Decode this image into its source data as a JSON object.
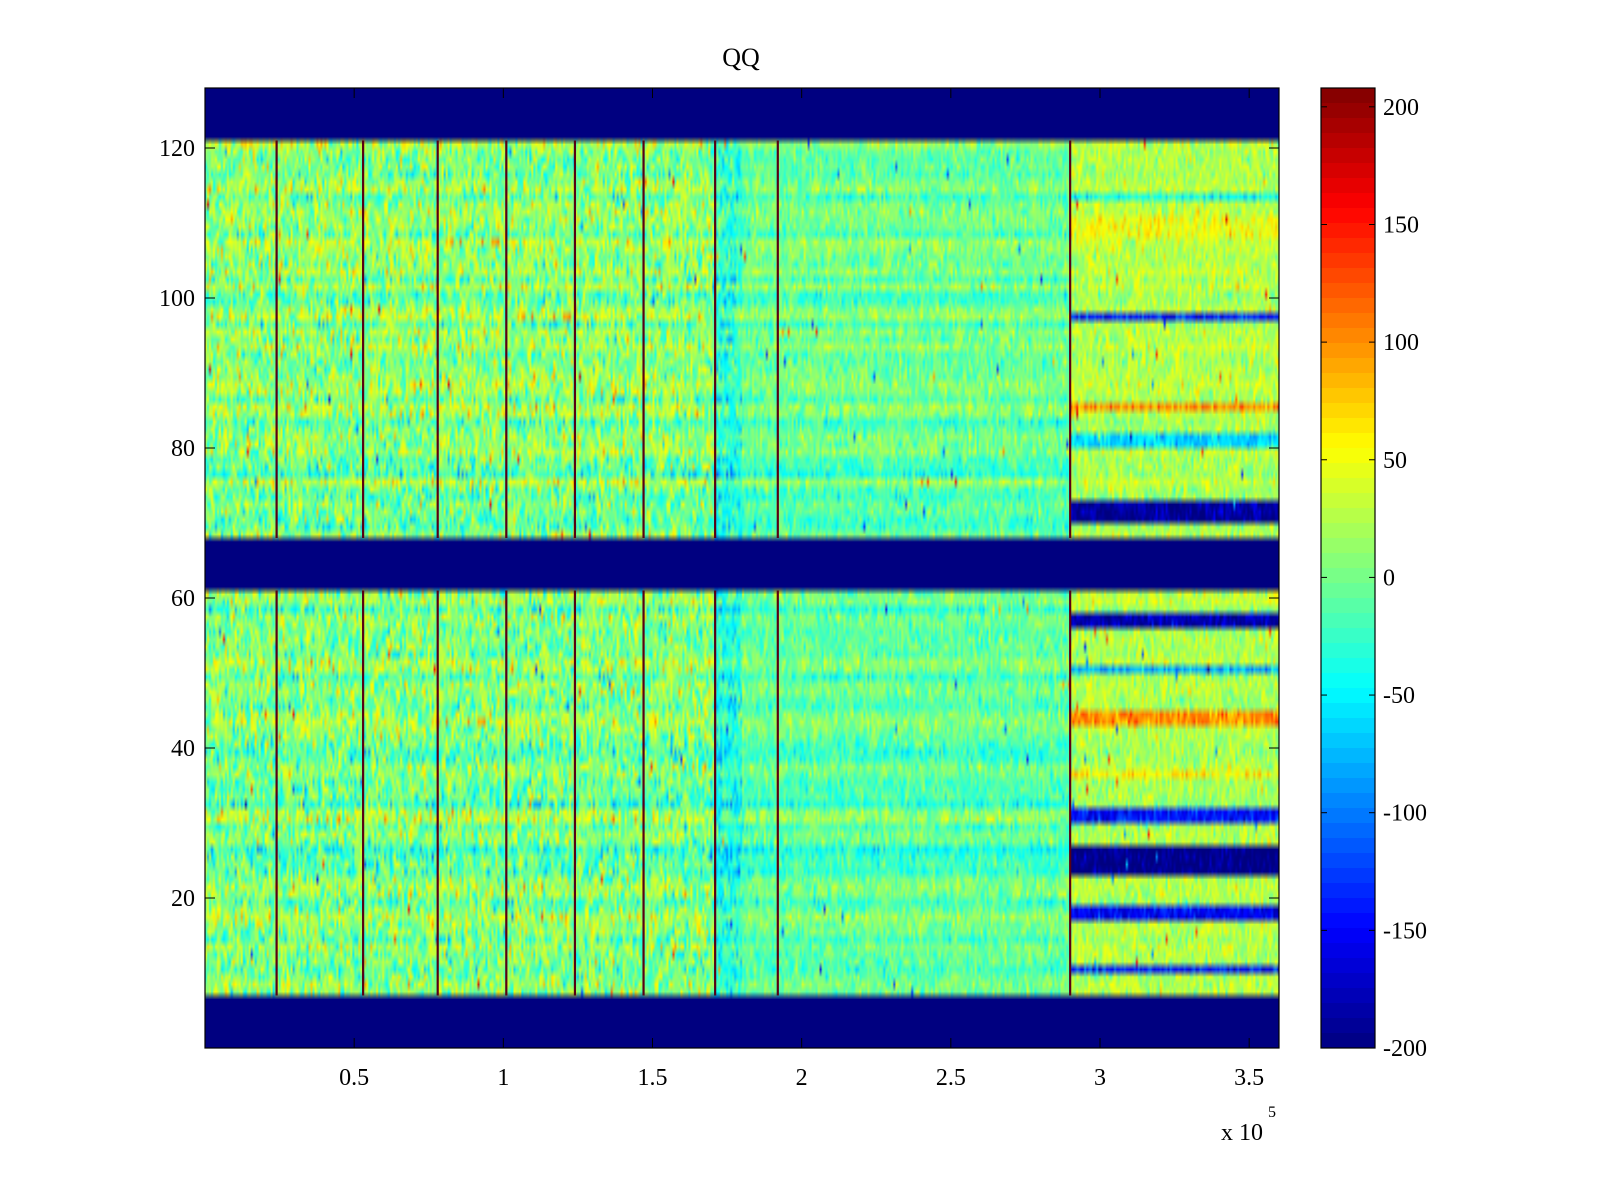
{
  "chart_data": {
    "type": "heatmap",
    "title": "QQ",
    "xlabel": "",
    "ylabel": "",
    "x_multiplier": "x 10",
    "x_multiplier_exponent": "5",
    "xlim": [
      0,
      360000
    ],
    "ylim": [
      0,
      128
    ],
    "x_ticks": [
      {
        "value": 50000,
        "label": "0.5"
      },
      {
        "value": 100000,
        "label": "1"
      },
      {
        "value": 150000,
        "label": "1.5"
      },
      {
        "value": 200000,
        "label": "2"
      },
      {
        "value": 250000,
        "label": "2.5"
      },
      {
        "value": 300000,
        "label": "3"
      },
      {
        "value": 350000,
        "label": "3.5"
      }
    ],
    "y_ticks": [
      {
        "value": 20,
        "label": "20"
      },
      {
        "value": 40,
        "label": "40"
      },
      {
        "value": 60,
        "label": "60"
      },
      {
        "value": 80,
        "label": "80"
      },
      {
        "value": 100,
        "label": "100"
      },
      {
        "value": 120,
        "label": "120"
      }
    ],
    "colorbar": {
      "colormap": "jet",
      "clim": [
        -200,
        208
      ],
      "ticks": [
        {
          "value": 200,
          "label": "200"
        },
        {
          "value": 150,
          "label": "150"
        },
        {
          "value": 100,
          "label": "100"
        },
        {
          "value": 50,
          "label": "50"
        },
        {
          "value": 0,
          "label": "0"
        },
        {
          "value": -50,
          "label": "-50"
        },
        {
          "value": -100,
          "label": "-100"
        },
        {
          "value": -150,
          "label": "-150"
        },
        {
          "value": -200,
          "label": "-200"
        }
      ]
    },
    "background_value": -200,
    "masked_row_bands": [
      {
        "from": 0,
        "to": 7
      },
      {
        "from": 61,
        "to": 68
      },
      {
        "from": 121,
        "to": 128
      }
    ],
    "noise_level": 0,
    "noise_spread": 28,
    "vertical_spikes": [
      {
        "x": 24000,
        "value": 200
      },
      {
        "x": 53000,
        "value": 200
      },
      {
        "x": 78000,
        "value": 200
      },
      {
        "x": 101000,
        "value": 200
      },
      {
        "x": 124000,
        "value": 200
      },
      {
        "x": 147000,
        "value": 200
      },
      {
        "x": 171000,
        "value": 200
      },
      {
        "x": 192000,
        "value": 200
      },
      {
        "x": 290000,
        "value": 200
      }
    ],
    "x_segments": [
      {
        "from": 0,
        "to": 171000,
        "noise_spread": 30,
        "level": 8
      },
      {
        "from": 171000,
        "to": 180000,
        "noise_spread": 24,
        "level": -30
      },
      {
        "from": 180000,
        "to": 290000,
        "noise_spread": 18,
        "level": -5
      },
      {
        "from": 290000,
        "to": 360000,
        "noise_spread": 10,
        "level": 0
      }
    ],
    "row_bands_right_section": [
      {
        "rows": [
          70,
          73
        ],
        "value": -190
      },
      {
        "rows": [
          23,
          27
        ],
        "value": -200
      },
      {
        "rows": [
          56,
          58
        ],
        "value": -180
      },
      {
        "rows": [
          97,
          98
        ],
        "value": -140
      },
      {
        "rows": [
          43,
          45
        ],
        "value": 100
      },
      {
        "rows": [
          85,
          86
        ],
        "value": 100
      },
      {
        "rows": [
          30,
          32
        ],
        "value": -140
      },
      {
        "rows": [
          17,
          19
        ],
        "value": -150
      },
      {
        "rows": [
          10,
          11
        ],
        "value": -140
      },
      {
        "rows": [
          36,
          37
        ],
        "value": 60
      },
      {
        "rows": [
          50,
          51
        ],
        "value": -80
      },
      {
        "rows": [
          80,
          82
        ],
        "value": -60
      },
      {
        "rows": [
          108,
          111
        ],
        "value": 50
      },
      {
        "rows": [
          113,
          114
        ],
        "value": -40
      }
    ]
  }
}
